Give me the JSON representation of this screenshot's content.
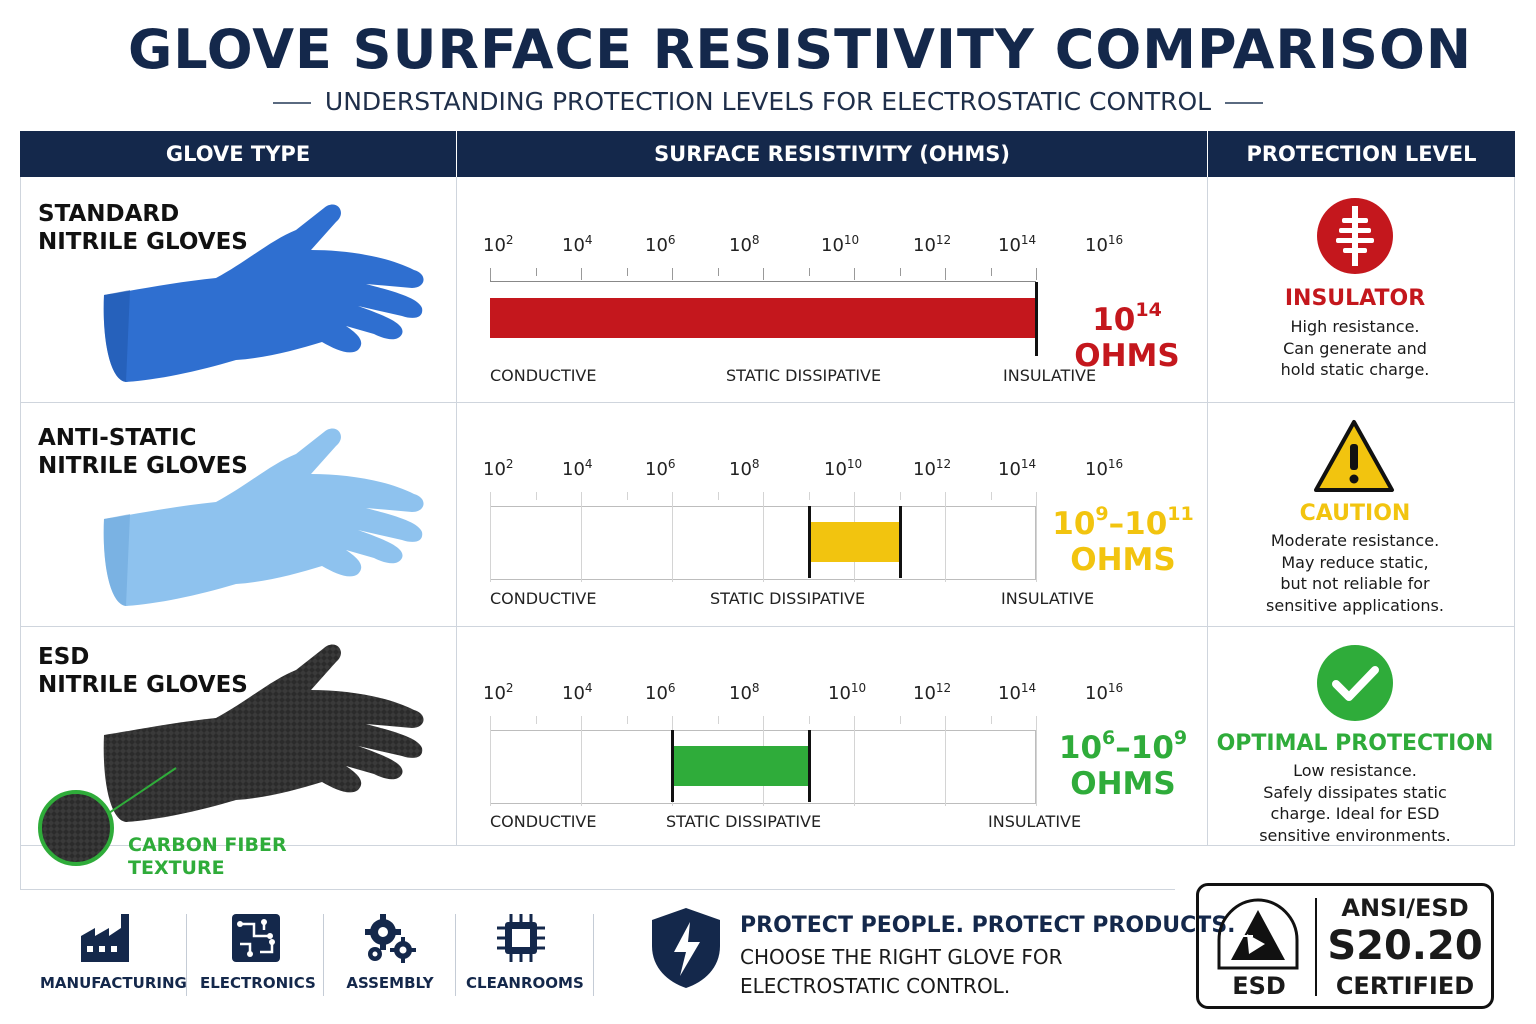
{
  "header": {
    "title": "GLOVE SURFACE RESISTIVITY COMPARISON",
    "subtitle": "UNDERSTANDING PROTECTION LEVELS FOR ELECTROSTATIC CONTROL"
  },
  "table": {
    "columns": [
      "GLOVE TYPE",
      "SURFACE RESISTIVITY (OHMS)",
      "PROTECTION LEVEL"
    ],
    "scale_ticks": [
      {
        "base": "10",
        "exp": "2"
      },
      {
        "base": "10",
        "exp": "4"
      },
      {
        "base": "10",
        "exp": "6"
      },
      {
        "base": "10",
        "exp": "8"
      },
      {
        "base": "10",
        "exp": "10"
      },
      {
        "base": "10",
        "exp": "12"
      },
      {
        "base": "10",
        "exp": "14"
      },
      {
        "base": "10",
        "exp": "16"
      }
    ],
    "zones": [
      "CONDUCTIVE",
      "STATIC DISSIPATIVE",
      "INSULATIVE"
    ],
    "rows": [
      {
        "name_line1": "STANDARD",
        "name_line2": "NITRILE GLOVES",
        "glove_color": "#2f6fd0",
        "range_from_exp": 2,
        "range_to_exp": 14,
        "bar_color": "#c4171d",
        "value_base": "10",
        "value_exp": "14",
        "value_exp2": "",
        "value_unit": "OHMS",
        "value_color": "#c4171d",
        "protection_icon": "insulator-icon",
        "protection_title": "INSULATOR",
        "protection_title_color": "#c4171d",
        "protection_desc": [
          "High resistance.",
          "Can generate and",
          "hold static charge."
        ]
      },
      {
        "name_line1": "ANTI-STATIC",
        "name_line2": "NITRILE GLOVES",
        "glove_color": "#8ec2ee",
        "range_from_exp": 9,
        "range_to_exp": 11,
        "bar_color": "#f2c40f",
        "value_base": "10",
        "value_exp": "9",
        "value_exp2": "11",
        "value_unit": "OHMS",
        "value_color": "#f2c40f",
        "protection_icon": "warning-icon",
        "protection_title": "CAUTION",
        "protection_title_color": "#f2c40f",
        "protection_desc": [
          "Moderate resistance.",
          "May reduce static,",
          "but not reliable for",
          "sensitive applications."
        ]
      },
      {
        "name_line1": "ESD",
        "name_line2": "NITRILE GLOVES",
        "glove_color": "#2b2b2b",
        "range_from_exp": 6,
        "range_to_exp": 9,
        "bar_color": "#2fac3a",
        "value_base": "10",
        "value_exp": "6",
        "value_exp2": "9",
        "value_unit": "OHMS",
        "value_color": "#2fac3a",
        "protection_icon": "checkmark-icon",
        "protection_title": "OPTIMAL PROTECTION",
        "protection_title_color": "#2fac3a",
        "protection_desc": [
          "Low resistance.",
          "Safely dissipates static",
          "charge. Ideal for ESD",
          "sensitive environments."
        ],
        "callout_line1": "CARBON FIBER",
        "callout_line2": "TEXTURE"
      }
    ]
  },
  "industries": [
    {
      "icon": "factory-icon",
      "label": "MANUFACTURING"
    },
    {
      "icon": "circuit-board-icon",
      "label": "ELECTRONICS"
    },
    {
      "icon": "gears-icon",
      "label": "ASSEMBLY"
    },
    {
      "icon": "microchip-icon",
      "label": "CLEANROOMS"
    }
  ],
  "promo": {
    "headline": "PROTECT PEOPLE. PROTECT PRODUCTS.",
    "line1": "CHOOSE THE RIGHT GLOVE FOR",
    "line2": "ELECTROSTATIC CONTROL."
  },
  "certification": {
    "badge_label": "ESD",
    "line1": "ANSI/ESD",
    "line2": "S20.20",
    "line3": "CERTIFIED"
  },
  "colors": {
    "navy": "#14284b",
    "red": "#c4171d",
    "yellow": "#f2c40f",
    "green": "#2fac3a"
  }
}
